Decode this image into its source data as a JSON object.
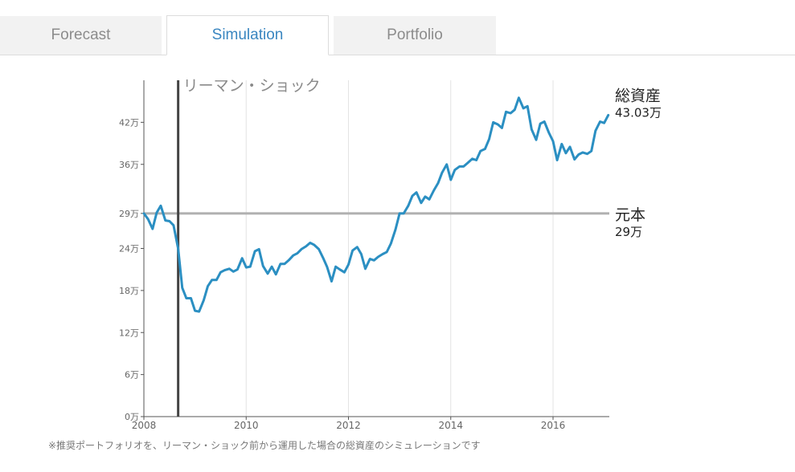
{
  "tabs": [
    {
      "label": "Forecast",
      "active": false
    },
    {
      "label": "Simulation",
      "active": true
    },
    {
      "label": "Portfolio",
      "active": false
    }
  ],
  "colors": {
    "accent": "#3a86c0",
    "series": "#2b8fc2",
    "principal_line": "#b0b0b0",
    "event_line": "#444444"
  },
  "note": "※推奨ポートフォリオを、リーマン・ショック前から運用した場合の総資産のシミュレーションです",
  "chart_data": {
    "type": "line",
    "title": "",
    "xlabel": "",
    "ylabel": "",
    "xlim": [
      2008.0,
      2017.1
    ],
    "ylim": [
      0,
      48
    ],
    "y_unit": "万",
    "yticks": [
      0,
      6,
      12,
      18,
      24,
      29,
      36,
      42
    ],
    "ytick_labels": [
      "0",
      "6",
      "12",
      "18",
      "24",
      "29",
      "36",
      "42"
    ],
    "xticks": [
      2008,
      2010,
      2012,
      2014,
      2016
    ],
    "xtick_labels": [
      "2008",
      "2010",
      "2012",
      "2014",
      "2016"
    ],
    "grid": "vertical",
    "event": {
      "x": 2008.67,
      "label": "リーマン・ショック"
    },
    "principal": {
      "label": "元本",
      "value": 29,
      "value_label": "29",
      "unit": "万"
    },
    "total": {
      "label": "総資産",
      "value_label": "43.03",
      "unit": "万"
    },
    "series": [
      {
        "x": [
          2008.0,
          2008.08,
          2008.17,
          2008.25,
          2008.33,
          2008.42,
          2008.5,
          2008.58,
          2008.67,
          2008.75,
          2008.83,
          2008.92,
          2009.0,
          2009.08,
          2009.17,
          2009.25,
          2009.33,
          2009.42,
          2009.5,
          2009.58,
          2009.67,
          2009.75,
          2009.83,
          2009.92,
          2010.0,
          2010.08,
          2010.17,
          2010.25,
          2010.33,
          2010.42,
          2010.5,
          2010.58,
          2010.67,
          2010.75,
          2010.83,
          2010.92,
          2011.0,
          2011.08,
          2011.17,
          2011.25,
          2011.33,
          2011.42,
          2011.5,
          2011.58,
          2011.67,
          2011.75,
          2011.83,
          2011.92,
          2012.0,
          2012.08,
          2012.17,
          2012.25,
          2012.33,
          2012.42,
          2012.5,
          2012.58,
          2012.67,
          2012.75,
          2012.83,
          2012.92,
          2013.0,
          2013.08,
          2013.17,
          2013.25,
          2013.33,
          2013.42,
          2013.5,
          2013.58,
          2013.67,
          2013.75,
          2013.83,
          2013.92,
          2014.0,
          2014.08,
          2014.17,
          2014.25,
          2014.33,
          2014.42,
          2014.5,
          2014.58,
          2014.67,
          2014.75,
          2014.83,
          2014.92,
          2015.0,
          2015.08,
          2015.17,
          2015.25,
          2015.33,
          2015.42,
          2015.5,
          2015.58,
          2015.67,
          2015.75,
          2015.83,
          2015.92,
          2016.0,
          2016.08,
          2016.17,
          2016.25,
          2016.33,
          2016.42,
          2016.5,
          2016.58,
          2016.67,
          2016.75,
          2016.83,
          2016.92,
          2017.0,
          2017.08
        ],
        "values": [
          29.0,
          28.2,
          26.8,
          29.1,
          30.1,
          28.0,
          27.9,
          27.3,
          24.0,
          18.4,
          16.9,
          16.9,
          15.1,
          15.0,
          16.6,
          18.6,
          19.5,
          19.5,
          20.6,
          20.9,
          21.1,
          20.7,
          21.0,
          22.6,
          21.3,
          21.4,
          23.6,
          23.9,
          21.5,
          20.4,
          21.4,
          20.3,
          21.8,
          21.8,
          22.3,
          23.0,
          23.3,
          23.9,
          24.3,
          24.8,
          24.5,
          23.9,
          22.7,
          21.4,
          19.3,
          21.4,
          21.0,
          20.6,
          21.7,
          23.7,
          24.2,
          23.2,
          21.1,
          22.5,
          22.3,
          22.8,
          23.2,
          23.5,
          24.7,
          26.7,
          29.0,
          29.0,
          30.1,
          31.5,
          32.0,
          30.5,
          31.4,
          31.0,
          32.3,
          33.3,
          34.8,
          36.0,
          33.8,
          35.2,
          35.7,
          35.7,
          36.2,
          36.8,
          36.6,
          37.9,
          38.2,
          39.6,
          42.0,
          41.7,
          41.2,
          43.5,
          43.3,
          43.8,
          45.5,
          44.0,
          44.3,
          41.0,
          39.5,
          41.8,
          42.1,
          40.5,
          39.3,
          36.6,
          38.9,
          37.6,
          38.5,
          36.7,
          37.4,
          37.7,
          37.5,
          37.9,
          40.8,
          42.1,
          41.9,
          43.03
        ]
      }
    ]
  }
}
